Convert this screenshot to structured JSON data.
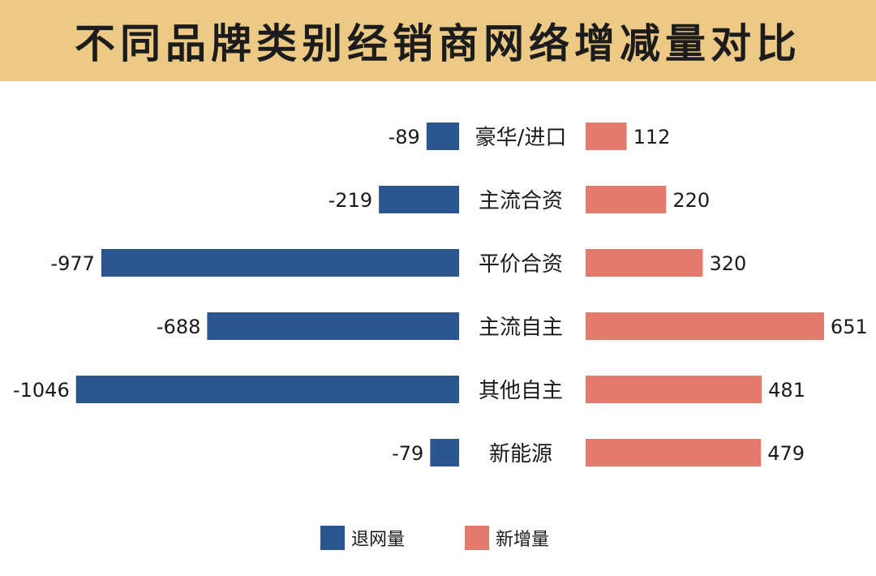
{
  "chart_data": {
    "type": "bar",
    "title": "不同品牌类别经销商网络增减量对比",
    "categories": [
      "豪华/进口",
      "主流合资",
      "平价合资",
      "主流自主",
      "其他自主",
      "新能源"
    ],
    "series": [
      {
        "name": "退网量",
        "color": "#2c5690",
        "values": [
          -89,
          -219,
          -977,
          -688,
          -1046,
          -79
        ]
      },
      {
        "name": "新增量",
        "color": "#e37a6e",
        "values": [
          112,
          220,
          320,
          651,
          481,
          479
        ]
      }
    ],
    "legend_position": "bottom-center",
    "grid": false
  }
}
